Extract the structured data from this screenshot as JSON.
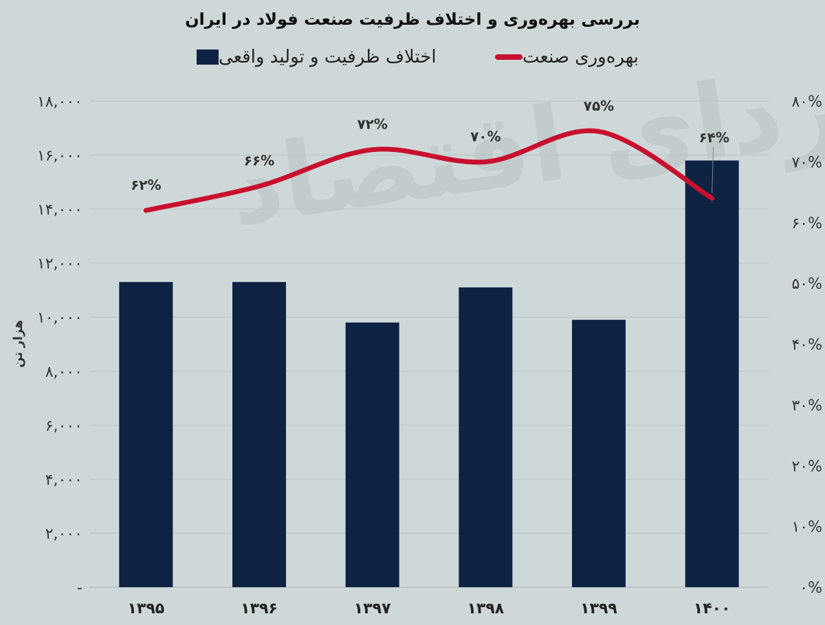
{
  "title": "بررسی بهره‌وری و اختلاف ظرفیت صنعت فولاد در ایران",
  "watermark": "فردای اقتصاد",
  "legend": {
    "line_label": "بهره‌وری صنعت",
    "bar_label": "اختلاف ظرفیت  و تولید واقعی"
  },
  "colors": {
    "bar": "#0e2244",
    "line": "#c8102e",
    "background": "#cfd8d9",
    "grid": "#b7c1c2"
  },
  "chart_data": {
    "type": "bar",
    "categories": [
      "۱۳۹۵",
      "۱۳۹۶",
      "۱۳۹۷",
      "۱۳۹۸",
      "۱۳۹۹",
      "۱۴۰۰"
    ],
    "series": [
      {
        "name": "اختلاف ظرفیت  و تولید واقعی",
        "type": "bar",
        "axis": "left",
        "values": [
          11300,
          11300,
          9800,
          11100,
          9900,
          15800
        ]
      },
      {
        "name": "بهره‌وری صنعت",
        "type": "line",
        "axis": "right",
        "values": [
          62,
          66,
          72,
          70,
          75,
          64
        ],
        "labels": [
          "۶۲%",
          "۶۶%",
          "۷۲%",
          "۷۰%",
          "۷۵%",
          "۶۴%"
        ]
      }
    ],
    "ylabel": "هزار تن",
    "ylim": [
      0,
      18000
    ],
    "y_ticks": [
      0,
      2000,
      4000,
      6000,
      8000,
      10000,
      12000,
      14000,
      16000,
      18000
    ],
    "y_tick_labels": [
      "-",
      "۲,۰۰۰",
      "۴,۰۰۰",
      "۶,۰۰۰",
      "۸,۰۰۰",
      "۱۰,۰۰۰",
      "۱۲,۰۰۰",
      "۱۴,۰۰۰",
      "۱۶,۰۰۰",
      "۱۸,۰۰۰"
    ],
    "y2lim": [
      0,
      80
    ],
    "y2_ticks": [
      0,
      10,
      20,
      30,
      40,
      50,
      60,
      70,
      80
    ],
    "y2_tick_labels": [
      "۰%",
      "۱۰%",
      "۲۰%",
      "۳۰%",
      "۴۰%",
      "۵۰%",
      "۶۰%",
      "۷۰%",
      "۸۰%"
    ],
    "grid": true,
    "legend_position": "top"
  }
}
